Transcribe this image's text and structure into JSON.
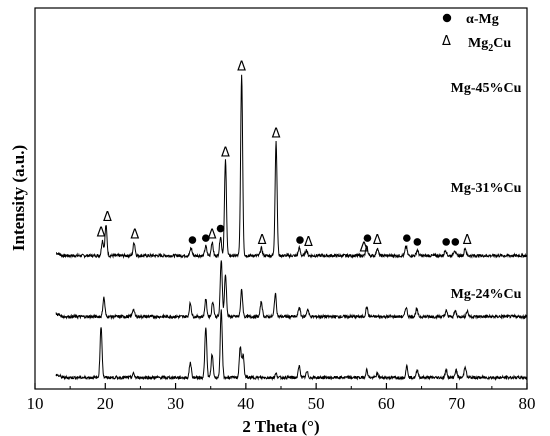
{
  "chart_data": {
    "type": "line",
    "xlabel": "2 Theta (°)",
    "ylabel": "Intensity (a.u.)",
    "xlim": [
      10,
      80
    ],
    "xticks": [
      "10",
      "20",
      "30",
      "40",
      "50",
      "60",
      "70",
      "80"
    ],
    "yticks": [],
    "grid": false,
    "legend": {
      "placement": "top-right",
      "entries": [
        {
          "symbol": "●",
          "text_main": "α-Mg",
          "text_sub": ""
        },
        {
          "symbol": "Δ",
          "text_main": "Mg",
          "text_sub": "2",
          "text_rest": "Cu"
        }
      ]
    },
    "series": [
      {
        "name": "Mg-45%Cu",
        "baseline": 70,
        "peaks": [
          [
            19.6,
            8
          ],
          [
            20.1,
            16
          ],
          [
            24.1,
            7
          ],
          [
            32.2,
            4
          ],
          [
            34.3,
            5
          ],
          [
            35.2,
            7
          ],
          [
            36.4,
            10
          ],
          [
            37.1,
            50
          ],
          [
            39.4,
            95
          ],
          [
            42.2,
            4
          ],
          [
            44.3,
            60
          ],
          [
            47.6,
            4
          ],
          [
            48.6,
            3
          ],
          [
            57.2,
            5
          ],
          [
            58.7,
            4
          ],
          [
            62.8,
            5
          ],
          [
            64.4,
            3
          ],
          [
            68.4,
            3
          ],
          [
            69.7,
            3
          ],
          [
            71.2,
            4
          ]
        ],
        "markers": [
          {
            "x": 19.4,
            "type": "tri"
          },
          {
            "x": 20.3,
            "type": "tri"
          },
          {
            "x": 24.2,
            "type": "tri"
          },
          {
            "x": 32.4,
            "type": "dot"
          },
          {
            "x": 34.3,
            "type": "dot"
          },
          {
            "x": 35.2,
            "type": "tri"
          },
          {
            "x": 36.4,
            "type": "dot"
          },
          {
            "x": 37.1,
            "type": "tri"
          },
          {
            "x": 39.4,
            "type": "tri"
          },
          {
            "x": 42.3,
            "type": "tri"
          },
          {
            "x": 44.3,
            "type": "tri"
          },
          {
            "x": 47.7,
            "type": "dot"
          },
          {
            "x": 48.9,
            "type": "tri"
          },
          {
            "x": 56.8,
            "type": "tri"
          },
          {
            "x": 57.3,
            "type": "dot"
          },
          {
            "x": 58.7,
            "type": "tri"
          },
          {
            "x": 62.9,
            "type": "dot"
          },
          {
            "x": 64.4,
            "type": "dot"
          },
          {
            "x": 68.5,
            "type": "dot"
          },
          {
            "x": 69.8,
            "type": "dot"
          },
          {
            "x": 71.5,
            "type": "tri"
          }
        ]
      },
      {
        "name": "Mg-31%Cu",
        "baseline": 38,
        "peaks": [
          [
            19.8,
            10
          ],
          [
            24.0,
            4
          ],
          [
            32.1,
            7
          ],
          [
            34.3,
            9
          ],
          [
            35.3,
            8
          ],
          [
            36.5,
            30
          ],
          [
            37.1,
            22
          ],
          [
            39.4,
            14
          ],
          [
            42.2,
            8
          ],
          [
            44.2,
            12
          ],
          [
            47.6,
            5
          ],
          [
            48.8,
            4
          ],
          [
            57.2,
            5
          ],
          [
            62.8,
            5
          ],
          [
            64.3,
            4
          ],
          [
            68.5,
            3
          ],
          [
            69.8,
            3
          ],
          [
            71.5,
            3
          ]
        ],
        "markers": []
      },
      {
        "name": "Mg-24%Cu",
        "baseline": 6,
        "peaks": [
          [
            19.4,
            27
          ],
          [
            24.0,
            2
          ],
          [
            32.1,
            8
          ],
          [
            34.3,
            26
          ],
          [
            35.2,
            12
          ],
          [
            36.5,
            35
          ],
          [
            39.2,
            16
          ],
          [
            39.6,
            12
          ],
          [
            44.3,
            2
          ],
          [
            47.6,
            6
          ],
          [
            48.7,
            3
          ],
          [
            57.2,
            4
          ],
          [
            58.7,
            2
          ],
          [
            62.9,
            6
          ],
          [
            64.4,
            4
          ],
          [
            68.5,
            4
          ],
          [
            69.9,
            4
          ],
          [
            71.2,
            6
          ]
        ],
        "markers": []
      }
    ]
  }
}
